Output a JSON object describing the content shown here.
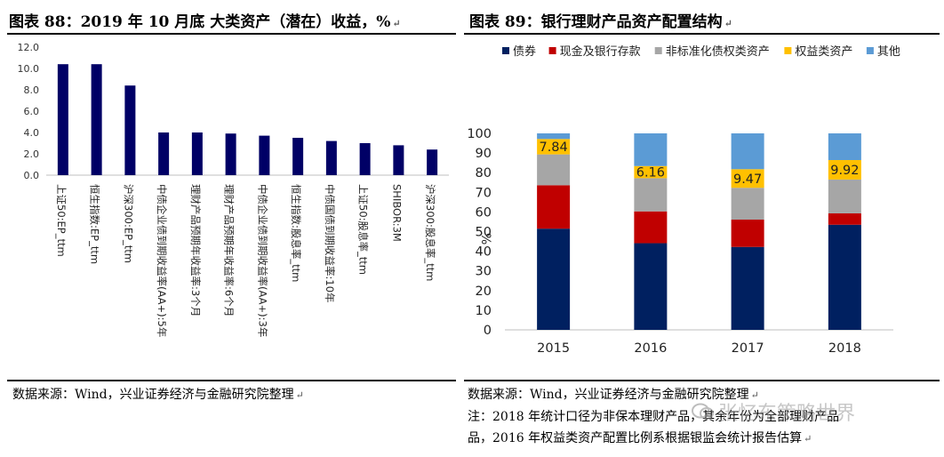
{
  "left_panel": {
    "title": "图表 88：2019 年 10 月底  大类资产（潜在）收益，%",
    "source": "数据来源：Wind，兴业证券经济与金融研究院整理"
  },
  "right_panel": {
    "title": "图表 89：银行理财产品资产配置结构",
    "source": "数据来源：Wind，兴业证券经济与金融研究院整理",
    "note_line1": "注：2018 年统计口径为非保本理财产品，其余年份为全部理财产品",
    "note_line2": "品，2016 年权益类资产配置比例系根据银监会统计报告估算"
  },
  "watermark": "张忆东策略世界",
  "markers": {
    "return_mark": "↵"
  },
  "colors": {
    "bar": "#000066",
    "bonds": "#002060",
    "cash": "#C00000",
    "nonstd": "#A6A6A6",
    "equity": "#FFC000",
    "other": "#5B9BD5"
  },
  "chart_data": [
    {
      "type": "bar",
      "title": "2019 年 10 月底  大类资产（潜在）收益，%",
      "categories": [
        "上证50:EP_ttm",
        "恒生指数:EP_ttm",
        "沪深300:EP_ttm",
        "中债企业债到期收益率(AA+):5年",
        "理财产品预期年收益率:3个月",
        "理财产品预期年收益率:6个月",
        "中债企业债到期收益率(AA+):3年",
        "恒生指数:股息率_ttm",
        "中债国债到期收益率:10年",
        "上证50:股息率_ttm",
        "SHIBOR:3M",
        "沪深300:股息率_ttm"
      ],
      "values": [
        10.4,
        10.4,
        8.4,
        4.0,
        4.0,
        3.9,
        3.7,
        3.5,
        3.2,
        3.0,
        2.8,
        2.4
      ],
      "ylim": [
        0,
        12
      ],
      "yticks": [
        "0.0",
        "2.0",
        "4.0",
        "6.0",
        "8.0",
        "10.0",
        "12.0"
      ],
      "xlabel": "",
      "ylabel": ""
    },
    {
      "type": "bar",
      "stacked": true,
      "title": "银行理财产品资产配置结构",
      "ylabel": "%",
      "categories": [
        "2015",
        "2016",
        "2017",
        "2018"
      ],
      "ylim": [
        0,
        100
      ],
      "yticks": [
        "0",
        "10",
        "20",
        "30",
        "40",
        "50",
        "60",
        "70",
        "80",
        "90",
        "100"
      ],
      "legend_position": "top",
      "series": [
        {
          "name": "债券",
          "key": "bonds",
          "values": [
            51.5,
            44.1,
            42.2,
            53.5
          ]
        },
        {
          "name": "现金及银行存款",
          "key": "cash",
          "values": [
            22.1,
            16.2,
            13.9,
            5.8
          ]
        },
        {
          "name": "非标准化债权类资产",
          "key": "nonstd",
          "values": [
            15.7,
            16.9,
            16.2,
            17.2
          ]
        },
        {
          "name": "权益类资产",
          "key": "equity",
          "values": [
            7.84,
            6.16,
            9.47,
            9.92
          ]
        },
        {
          "name": "其他",
          "key": "other",
          "values": [
            2.86,
            16.64,
            18.23,
            13.58
          ]
        }
      ],
      "data_labels": {
        "series": "权益类资产",
        "texts": [
          "7.84",
          "6.16",
          "9.47",
          "9.92"
        ]
      }
    }
  ]
}
